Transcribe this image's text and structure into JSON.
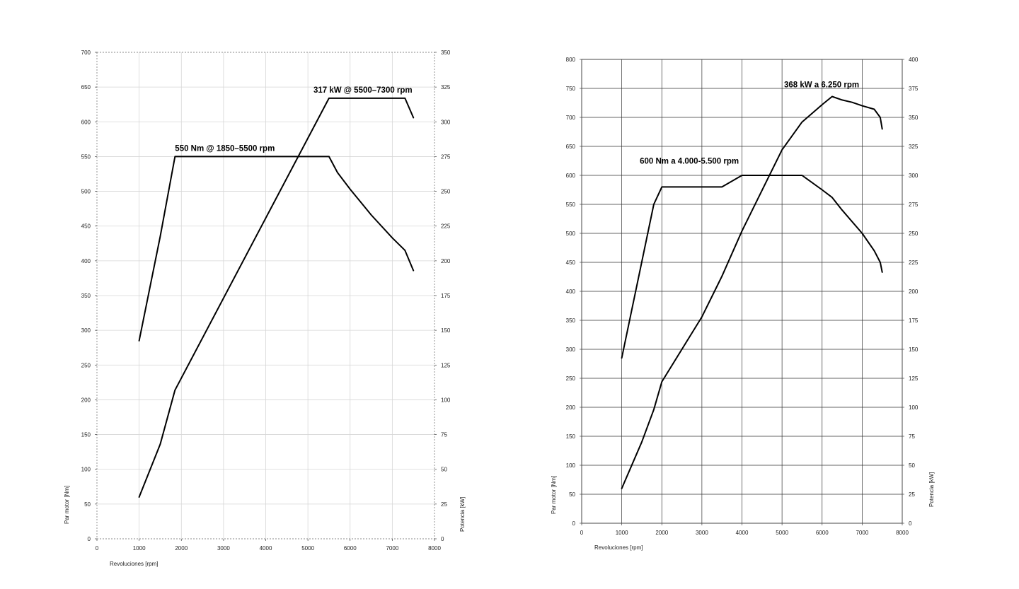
{
  "chart_data": [
    {
      "type": "line",
      "xlabel": "Revoluciones [rpm]",
      "ylabel_left": "Par motor [Nm]",
      "ylabel_right": "Potencia [kW]",
      "xlim": [
        0,
        8000
      ],
      "ylim_left": [
        0,
        700
      ],
      "ylim_right": [
        0,
        350
      ],
      "x_ticks": [
        0,
        1000,
        2000,
        3000,
        4000,
        5000,
        6000,
        7000,
        8000
      ],
      "y_left_ticks": [
        0,
        50,
        100,
        150,
        200,
        250,
        300,
        350,
        400,
        450,
        500,
        550,
        600,
        650,
        700
      ],
      "y_right_ticks": [
        0,
        25,
        50,
        75,
        100,
        125,
        150,
        175,
        200,
        225,
        250,
        275,
        300,
        325,
        350
      ],
      "grid": true,
      "frame_style": "dashed",
      "series": [
        {
          "axis": "left",
          "points": [
            [
              1000,
              285
            ],
            [
              1500,
              435
            ],
            [
              1850,
              550
            ],
            [
              5500,
              550
            ],
            [
              5700,
              527
            ],
            [
              6000,
              503
            ],
            [
              6500,
              466
            ],
            [
              7000,
              433
            ],
            [
              7300,
              415
            ],
            [
              7500,
              386
            ]
          ]
        },
        {
          "axis": "right",
          "points": [
            [
              1000,
              30
            ],
            [
              1500,
              68
            ],
            [
              1850,
              107
            ],
            [
              5500,
              317
            ],
            [
              7300,
              317
            ],
            [
              7500,
              303
            ]
          ]
        }
      ],
      "annotations": [
        {
          "text": "550 Nm @ 1850–5500 rpm",
          "x": 1850,
          "y": 558,
          "axis": "left"
        },
        {
          "text": "317 kW @ 5500–7300 rpm",
          "x": 5500,
          "y": 321,
          "axis": "right"
        }
      ]
    },
    {
      "type": "line",
      "xlabel": "Revoluciones [rpm]",
      "ylabel_left": "Par motor [Nm]",
      "ylabel_right": "Potencia [kW]",
      "xlim": [
        0,
        8000
      ],
      "ylim_left": [
        0,
        800
      ],
      "ylim_right": [
        0,
        400
      ],
      "x_ticks": [
        0,
        1000,
        2000,
        3000,
        4000,
        5000,
        6000,
        7000,
        8000
      ],
      "y_left_ticks": [
        0,
        50,
        100,
        150,
        200,
        250,
        300,
        350,
        400,
        450,
        500,
        550,
        600,
        650,
        700,
        750,
        800
      ],
      "y_right_ticks": [
        0,
        25,
        50,
        75,
        100,
        125,
        150,
        175,
        200,
        225,
        250,
        275,
        300,
        325,
        350,
        375,
        400
      ],
      "grid": true,
      "frame_style": "solid",
      "series": [
        {
          "axis": "left",
          "points": [
            [
              1000,
              285
            ],
            [
              1800,
              550
            ],
            [
              2000,
              580
            ],
            [
              3500,
              580
            ],
            [
              4000,
              600
            ],
            [
              5500,
              600
            ],
            [
              6000,
              575
            ],
            [
              6250,
              562
            ],
            [
              6500,
              540
            ],
            [
              7000,
              500
            ],
            [
              7300,
              470
            ],
            [
              7450,
              450
            ],
            [
              7500,
              433
            ]
          ]
        },
        {
          "axis": "right",
          "points": [
            [
              1000,
              30
            ],
            [
              1500,
              70
            ],
            [
              1800,
              98
            ],
            [
              2000,
              122
            ],
            [
              3000,
              178
            ],
            [
              3500,
              213
            ],
            [
              4000,
              252
            ],
            [
              5000,
              322
            ],
            [
              5500,
              346
            ],
            [
              6000,
              361
            ],
            [
              6250,
              368
            ],
            [
              6500,
              365
            ],
            [
              6750,
              363
            ],
            [
              7000,
              360
            ],
            [
              7300,
              357
            ],
            [
              7450,
              350
            ],
            [
              7500,
              340
            ]
          ]
        }
      ],
      "annotations": [
        {
          "text": "600 Nm a 4.000-5.500 rpm",
          "x": 1450,
          "y": 620,
          "axis": "left"
        },
        {
          "text": "368 kW a 6.250 rpm",
          "x": 5050,
          "y": 376,
          "axis": "right"
        }
      ]
    }
  ]
}
